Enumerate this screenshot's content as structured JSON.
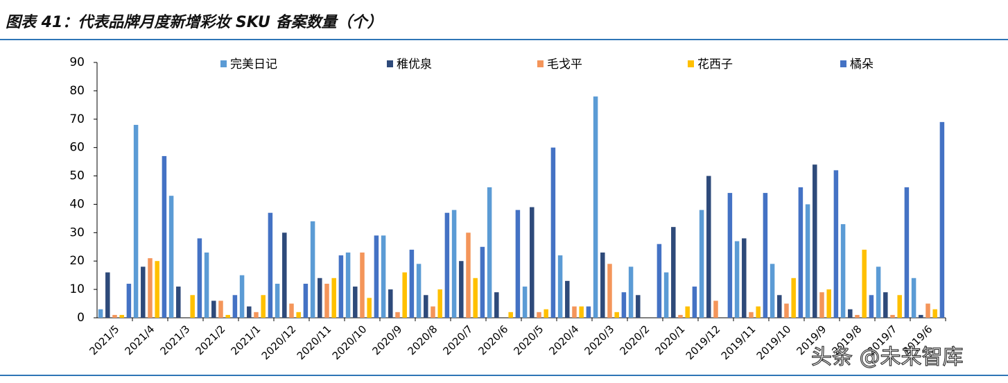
{
  "chart_data": {
    "type": "bar",
    "title": "图表 41：代表品牌月度新增彩妆 SKU 备案数量（个）",
    "watermark": "头条 @未来智库",
    "categories": [
      "2021/5",
      "2021/4",
      "2021/3",
      "2021/2",
      "2021/1",
      "2020/12",
      "2020/11",
      "2020/10",
      "2020/9",
      "2020/8",
      "2020/7",
      "2020/6",
      "2020/5",
      "2020/4",
      "2020/3",
      "2020/2",
      "2020/1",
      "2019/12",
      "2019/11",
      "2019/10",
      "2019/9",
      "2019/8",
      "2019/7",
      "2019/6"
    ],
    "series": [
      {
        "name": "完美日记",
        "color": "#5b9bd5",
        "values": [
          3,
          68,
          43,
          23,
          15,
          12,
          34,
          23,
          29,
          19,
          38,
          46,
          11,
          22,
          78,
          18,
          16,
          38,
          27,
          19,
          40,
          33,
          18,
          14
        ]
      },
      {
        "name": "稚优泉",
        "color": "#2e4a7a",
        "values": [
          16,
          18,
          11,
          6,
          4,
          30,
          14,
          11,
          10,
          8,
          20,
          9,
          39,
          13,
          23,
          8,
          32,
          50,
          28,
          8,
          54,
          3,
          9,
          1
        ]
      },
      {
        "name": "毛戈平",
        "color": "#f4955a",
        "values": [
          1,
          21,
          0,
          6,
          2,
          5,
          12,
          23,
          2,
          4,
          30,
          0,
          2,
          4,
          19,
          0,
          1,
          6,
          2,
          5,
          9,
          1,
          1,
          5
        ]
      },
      {
        "name": "花西子",
        "color": "#ffc000",
        "values": [
          1,
          20,
          8,
          1,
          8,
          2,
          14,
          7,
          16,
          10,
          14,
          2,
          3,
          4,
          2,
          0,
          4,
          0,
          4,
          14,
          10,
          24,
          8,
          3
        ]
      },
      {
        "name": "橘朵",
        "color": "#4472c4",
        "values": [
          12,
          57,
          28,
          8,
          37,
          12,
          22,
          29,
          24,
          37,
          25,
          38,
          60,
          4,
          9,
          26,
          11,
          44,
          44,
          46,
          52,
          8,
          46,
          69
        ]
      }
    ],
    "ylim": [
      0,
      90
    ],
    "yticks": [
      0,
      10,
      20,
      30,
      40,
      50,
      60,
      70,
      80,
      90
    ]
  }
}
